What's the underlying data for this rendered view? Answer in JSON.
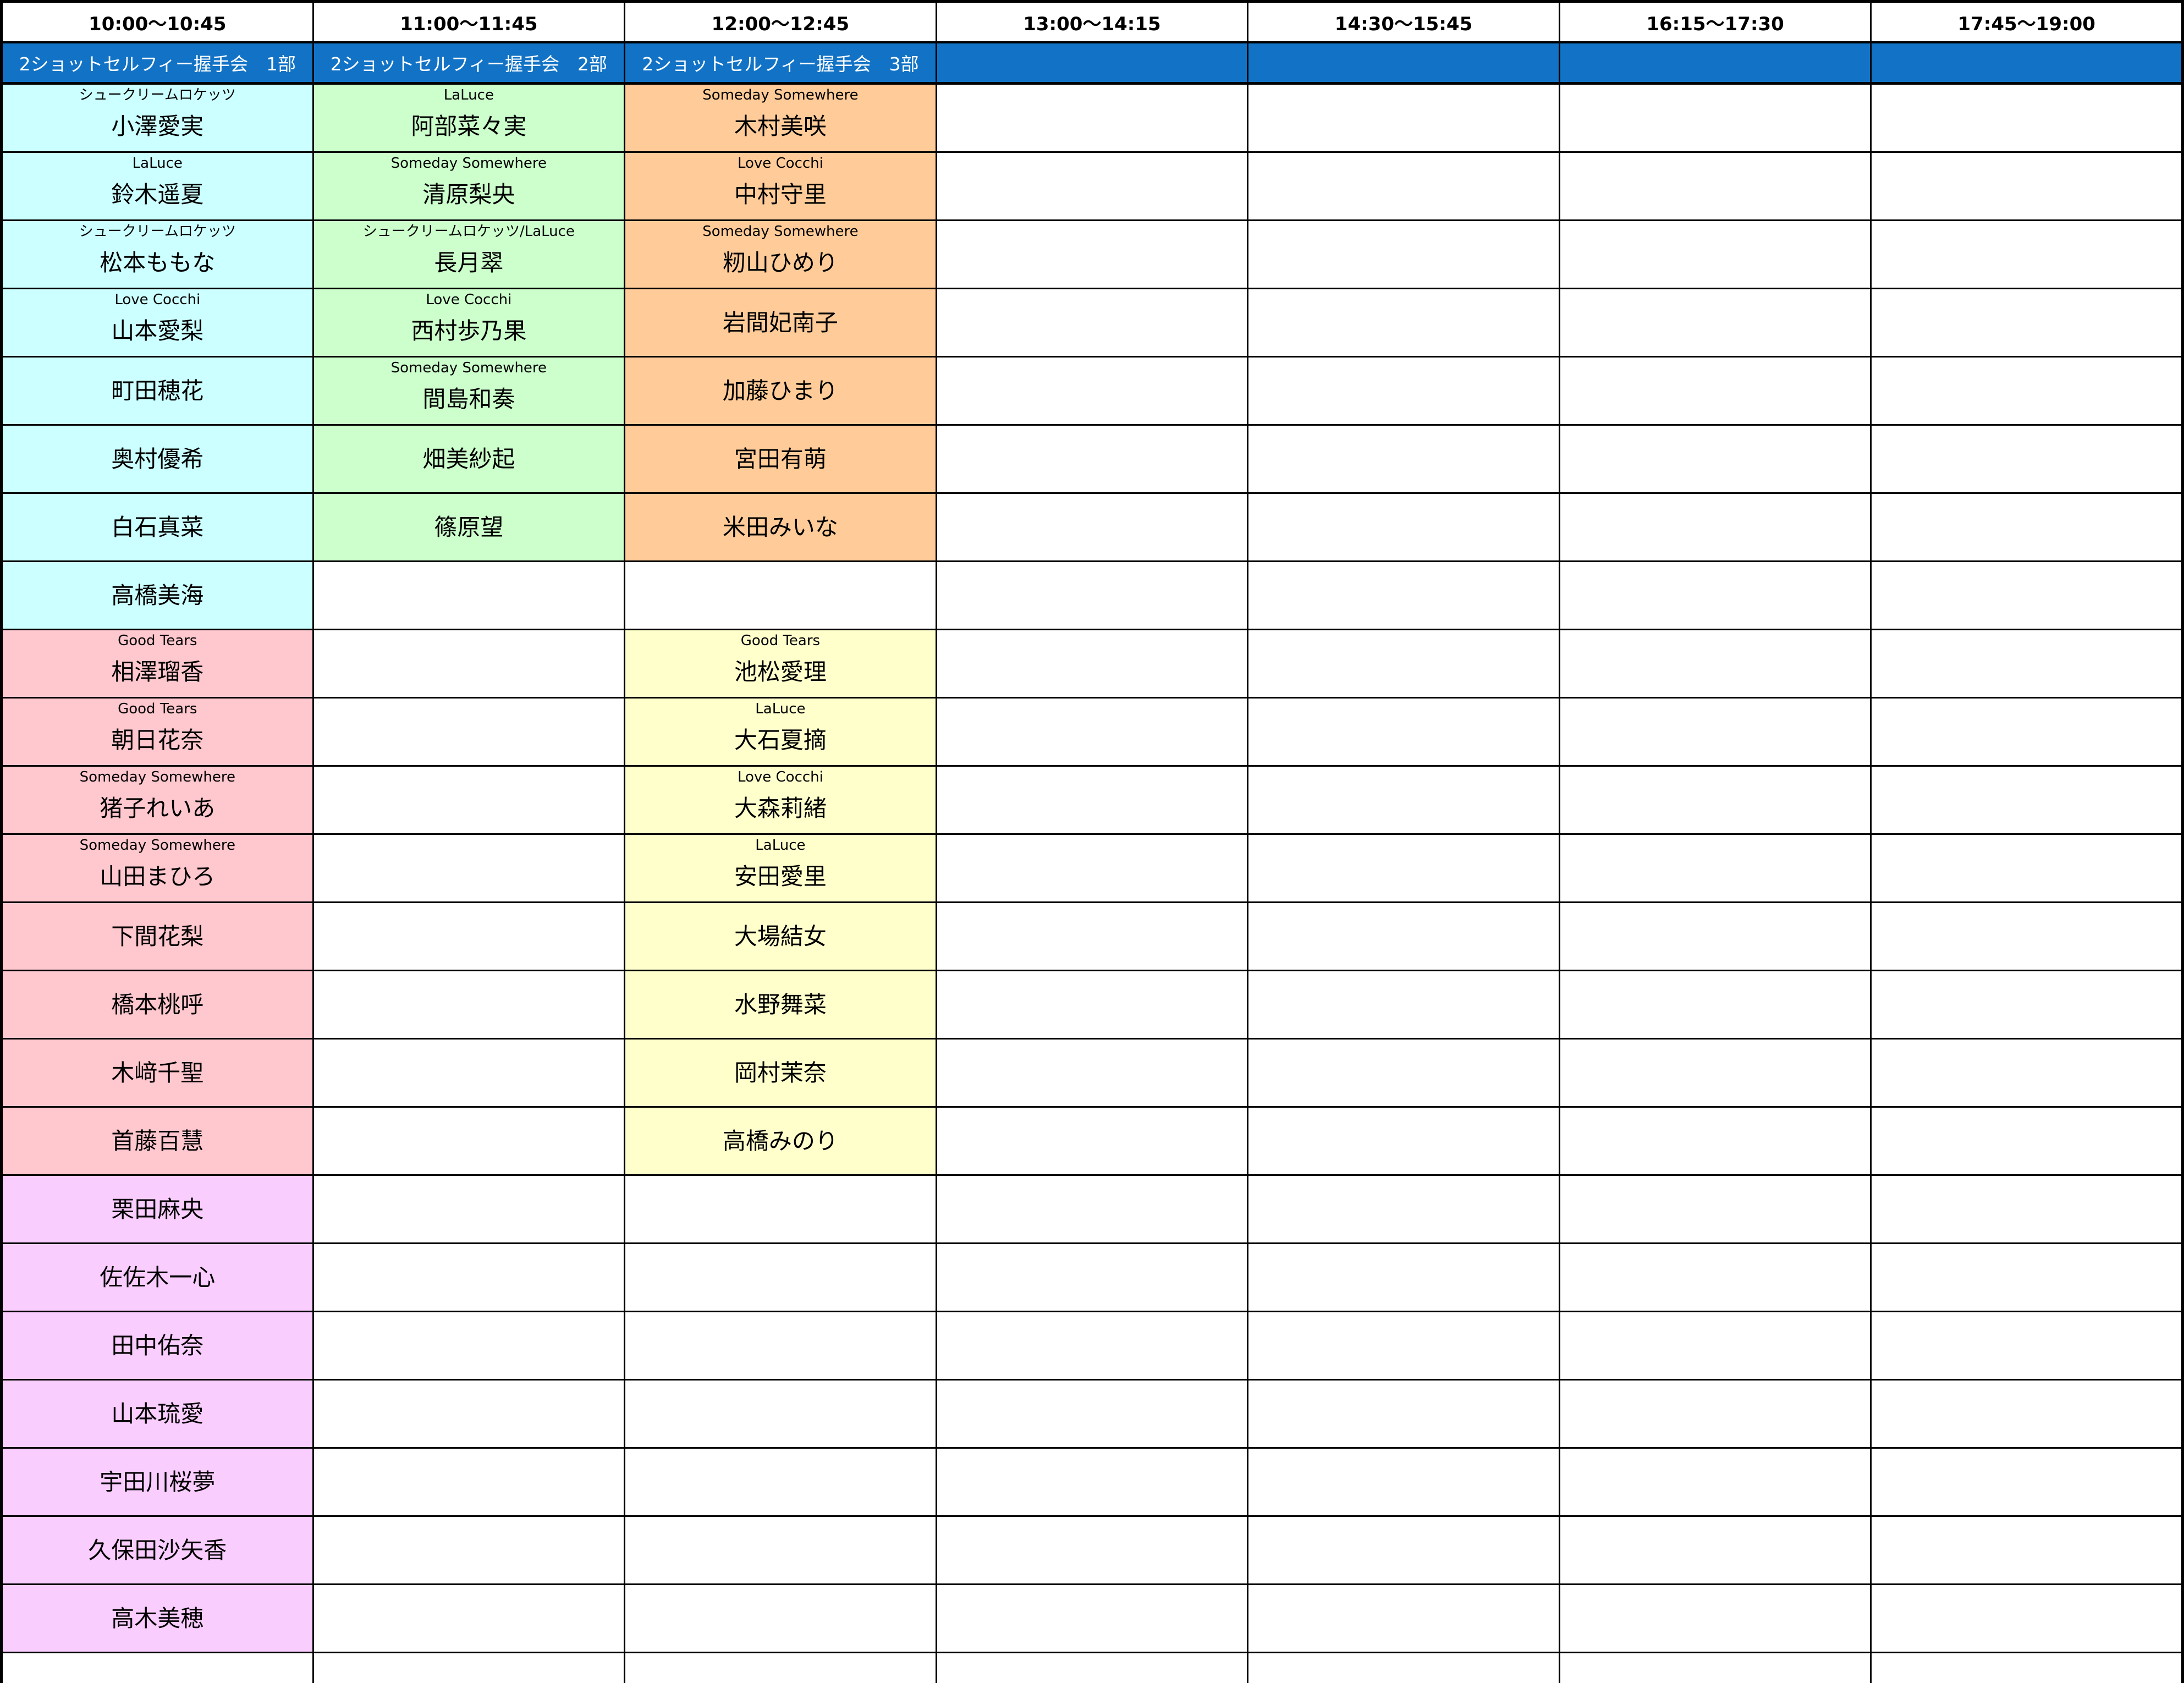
{
  "palette": {
    "event_band_bg": "#1273C6",
    "event_band_text": "#FFFFFF",
    "header_bg": "#FFFFFF",
    "header_text": "#000000",
    "grid_line": "#000000",
    "cyan": "#CCFFFF",
    "green": "#CCFFCC",
    "orange": "#FFCC99",
    "pink": "#FFC7CE",
    "violet": "#FACDFF",
    "yellow": "#FFFFCC",
    "white": "#FFFFFF"
  },
  "columns": [
    {
      "header": "10:00～10:45",
      "event": "2ショットセルフィー握手会　1部",
      "cells": [
        {
          "group": "シュークリームロケッツ",
          "name": "小澤愛実",
          "bg": "cyan"
        },
        {
          "group": "LaLuce",
          "name": "鈴木遥夏",
          "bg": "cyan"
        },
        {
          "group": "シュークリームロケッツ",
          "name": "松本ももな",
          "bg": "cyan"
        },
        {
          "group": "Love Cocchi",
          "name": "山本愛梨",
          "bg": "cyan"
        },
        {
          "group": "",
          "name": "町田穂花",
          "bg": "cyan"
        },
        {
          "group": "",
          "name": "奥村優希",
          "bg": "cyan"
        },
        {
          "group": "",
          "name": "白石真菜",
          "bg": "cyan"
        },
        {
          "group": "",
          "name": "高橋美海",
          "bg": "cyan"
        },
        {
          "group": "Good Tears",
          "name": "相澤瑠香",
          "bg": "pink"
        },
        {
          "group": "Good Tears",
          "name": "朝日花奈",
          "bg": "pink"
        },
        {
          "group": "Someday Somewhere",
          "name": "猪子れいあ",
          "bg": "pink"
        },
        {
          "group": "Someday Somewhere",
          "name": "山田まひろ",
          "bg": "pink"
        },
        {
          "group": "",
          "name": "下間花梨",
          "bg": "pink"
        },
        {
          "group": "",
          "name": "橋本桃呼",
          "bg": "pink"
        },
        {
          "group": "",
          "name": "木﨑千聖",
          "bg": "pink"
        },
        {
          "group": "",
          "name": "首藤百慧",
          "bg": "pink"
        },
        {
          "group": "",
          "name": "栗田麻央",
          "bg": "violet"
        },
        {
          "group": "",
          "name": "佐佐木一心",
          "bg": "violet"
        },
        {
          "group": "",
          "name": "田中佑奈",
          "bg": "violet"
        },
        {
          "group": "",
          "name": "山本琉愛",
          "bg": "violet"
        },
        {
          "group": "",
          "name": "宇田川桜夢",
          "bg": "violet"
        },
        {
          "group": "",
          "name": "久保田沙矢香",
          "bg": "violet"
        },
        {
          "group": "",
          "name": "高木美穂",
          "bg": "violet"
        },
        {
          "group": "",
          "name": "",
          "bg": "white"
        }
      ]
    },
    {
      "header": "11:00～11:45",
      "event": "2ショットセルフィー握手会　2部",
      "cells": [
        {
          "group": "LaLuce",
          "name": "阿部菜々実",
          "bg": "green"
        },
        {
          "group": "Someday Somewhere",
          "name": "清原梨央",
          "bg": "green"
        },
        {
          "group": "シュークリームロケッツ/LaLuce",
          "name": "長月翠",
          "bg": "green"
        },
        {
          "group": "Love Cocchi",
          "name": "西村歩乃果",
          "bg": "green"
        },
        {
          "group": "Someday Somewhere",
          "name": "間島和奏",
          "bg": "green"
        },
        {
          "group": "",
          "name": "畑美紗起",
          "bg": "green"
        },
        {
          "group": "",
          "name": "篠原望",
          "bg": "green"
        }
      ]
    },
    {
      "header": "12:00～12:45",
      "event": "2ショットセルフィー握手会　3部",
      "cells": [
        {
          "group": "Someday Somewhere",
          "name": "木村美咲",
          "bg": "orange"
        },
        {
          "group": "Love Cocchi",
          "name": "中村守里",
          "bg": "orange"
        },
        {
          "group": "Someday Somewhere",
          "name": "籾山ひめり",
          "bg": "orange"
        },
        {
          "group": "",
          "name": "岩間妃南子",
          "bg": "orange"
        },
        {
          "group": "",
          "name": "加藤ひまり",
          "bg": "orange"
        },
        {
          "group": "",
          "name": "宮田有萌",
          "bg": "orange"
        },
        {
          "group": "",
          "name": "米田みいな",
          "bg": "orange"
        },
        {
          "group": "",
          "name": "",
          "bg": "white"
        },
        {
          "group": "Good Tears",
          "name": "池松愛理",
          "bg": "yellow"
        },
        {
          "group": "LaLuce",
          "name": "大石夏摘",
          "bg": "yellow"
        },
        {
          "group": "Love Cocchi",
          "name": "大森莉緒",
          "bg": "yellow"
        },
        {
          "group": "LaLuce",
          "name": "安田愛里",
          "bg": "yellow"
        },
        {
          "group": "",
          "name": "大場結女",
          "bg": "yellow"
        },
        {
          "group": "",
          "name": "水野舞菜",
          "bg": "yellow"
        },
        {
          "group": "",
          "name": "岡村茉奈",
          "bg": "yellow"
        },
        {
          "group": "",
          "name": "高橋みのり",
          "bg": "yellow"
        }
      ]
    },
    {
      "header": "13:00～14:15",
      "event": "",
      "cells": []
    },
    {
      "header": "14:30～15:45",
      "event": "",
      "cells": []
    },
    {
      "header": "16:15～17:30",
      "event": "",
      "cells": []
    },
    {
      "header": "17:45～19:00",
      "event": "",
      "cells": []
    }
  ],
  "row_count": 24
}
